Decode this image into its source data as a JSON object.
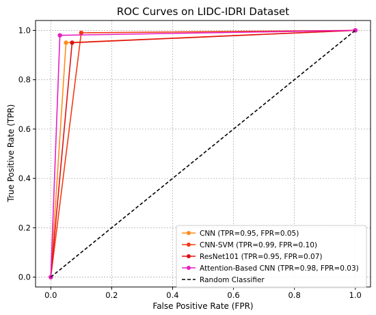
{
  "chart_data": {
    "type": "line",
    "title": "ROC Curves on LIDC-IDRI Dataset",
    "xlabel": "False Positive Rate (FPR)",
    "ylabel": "True Positive Rate (TPR)",
    "xlim": [
      -0.05,
      1.05
    ],
    "ylim": [
      -0.04,
      1.04
    ],
    "xticks": [
      "0.0",
      "0.2",
      "0.4",
      "0.6",
      "0.8",
      "1.0"
    ],
    "yticks": [
      "0.0",
      "0.2",
      "0.4",
      "0.6",
      "0.8",
      "1.0"
    ],
    "grid": true,
    "legend_position": "bottom-right",
    "series": [
      {
        "name": "CNN (TPR=0.95, FPR=0.05)",
        "color": "#ff8c1a",
        "style": "solid",
        "marker": true,
        "points": [
          [
            0,
            0
          ],
          [
            0.05,
            0.95
          ],
          [
            1,
            1
          ]
        ]
      },
      {
        "name": "CNN-SVM (TPR=0.99, FPR=0.10)",
        "color": "#f23a12",
        "style": "solid",
        "marker": true,
        "points": [
          [
            0,
            0
          ],
          [
            0.1,
            0.99
          ],
          [
            1,
            1
          ]
        ]
      },
      {
        "name": "ResNet101 (TPR=0.95, FPR=0.07)",
        "color": "#e01010",
        "style": "solid",
        "marker": true,
        "points": [
          [
            0,
            0
          ],
          [
            0.07,
            0.95
          ],
          [
            1,
            1
          ]
        ]
      },
      {
        "name": "Attention-Based CNN (TPR=0.98, FPR=0.03)",
        "color": "#e81cc4",
        "style": "solid",
        "marker": true,
        "points": [
          [
            0,
            0
          ],
          [
            0.03,
            0.98
          ],
          [
            1,
            1
          ]
        ]
      },
      {
        "name": "Random Classifier",
        "color": "#000000",
        "style": "dashed",
        "marker": false,
        "points": [
          [
            0,
            0
          ],
          [
            1,
            1
          ]
        ]
      }
    ]
  }
}
